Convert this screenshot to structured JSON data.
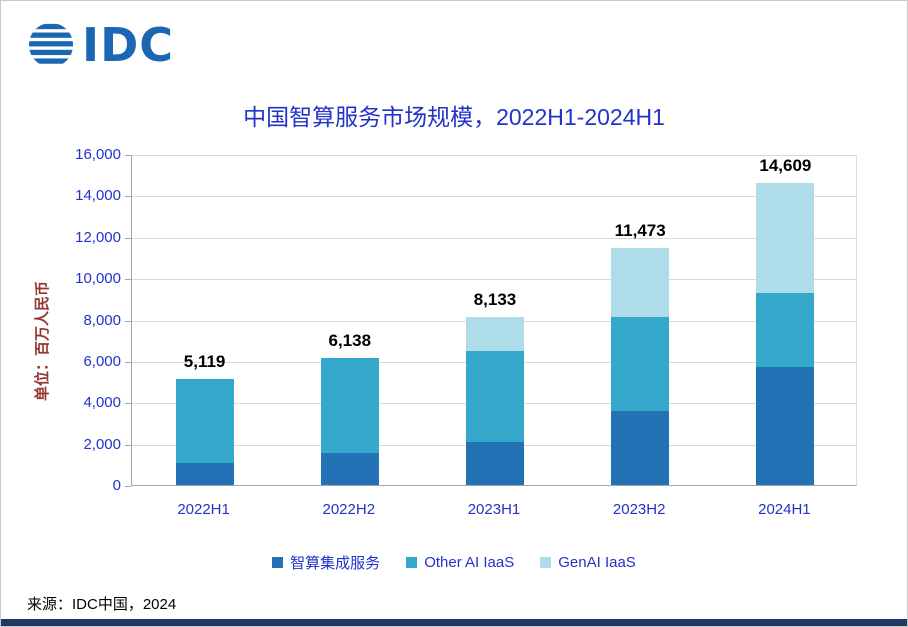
{
  "logo": {
    "text": "IDC"
  },
  "title": "中国智算服务市场规模，2022H1-2024H1",
  "ylabel": "单位：百万人民币",
  "footer": {
    "source": "来源：IDC中国，2024"
  },
  "colors": {
    "logo_blue": "#1B67B3",
    "title_text": "#2333C7",
    "axis_text": "#2333C7",
    "ylabel_text": "#943634",
    "total_label_text": "#000000",
    "gridline": "#D9D9D9",
    "bottom_bar": "#1F3864"
  },
  "chart_data": {
    "type": "bar",
    "stacked": true,
    "title": "中国智算服务市场规模，2022H1-2024H1",
    "ylabel": "单位：百万人民币",
    "xlabel": "",
    "categories": [
      "2022H1",
      "2022H2",
      "2023H1",
      "2023H2",
      "2024H1"
    ],
    "series": [
      {
        "name": "智算集成服务",
        "color": "#2272B5",
        "values": [
          1050,
          1550,
          2100,
          3600,
          5700
        ]
      },
      {
        "name": "Other AI IaaS",
        "color": "#34A7CB",
        "values": [
          4069,
          4588,
          4400,
          4500,
          3600
        ]
      },
      {
        "name": "GenAI IaaS",
        "color": "#AEDCE9",
        "values": [
          0,
          0,
          1633,
          3373,
          5309
        ]
      }
    ],
    "totals": [
      5119,
      6138,
      8133,
      11473,
      14609
    ],
    "totals_display": [
      "5,119",
      "6,138",
      "8,133",
      "11,473",
      "14,609"
    ],
    "ylim": [
      0,
      16000
    ],
    "ytick_step": 2000,
    "yticks_display": [
      "0",
      "2,000",
      "4,000",
      "6,000",
      "8,000",
      "10,000",
      "12,000",
      "14,000",
      "16,000"
    ],
    "grid": "horizontal",
    "legend_position": "bottom"
  }
}
